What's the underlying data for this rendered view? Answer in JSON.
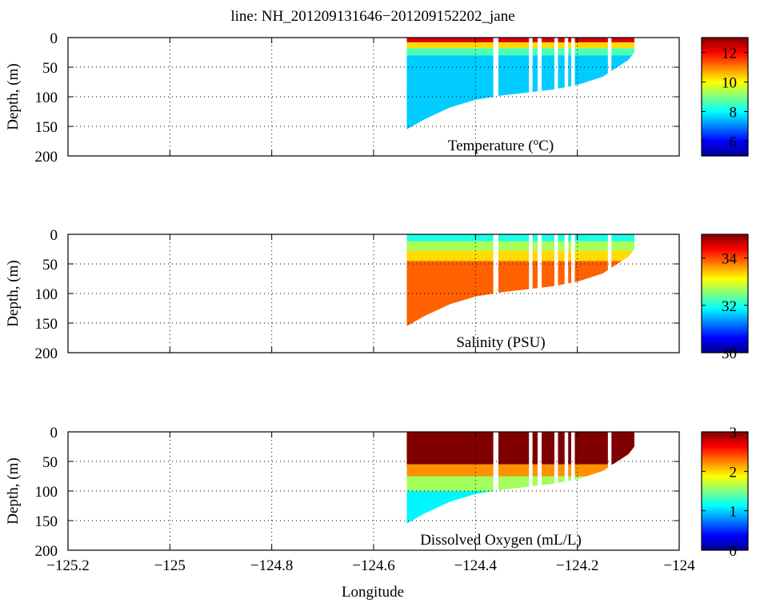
{
  "title": "line: NH_201209131646−201209152202_jane",
  "chart_data": [
    {
      "type": "heatmap",
      "panel": "temperature",
      "label": "Temperature (°C)",
      "label_parts": {
        "pre": "Temperature (",
        "sup": "o",
        "post": "C)"
      },
      "xlabel": "Longitude",
      "ylabel": "Depth, (m)",
      "xlim": [
        -125.2,
        -124.0
      ],
      "ylim": [
        0,
        200
      ],
      "xticks": [
        -125.2,
        -125.0,
        -124.8,
        -124.6,
        -124.4,
        -124.2,
        -124.0
      ],
      "yticks": [
        0,
        50,
        100,
        150,
        200
      ],
      "ytick_labels": [
        "0",
        "50",
        "100",
        "150",
        "200"
      ],
      "colorbar": {
        "min": 5,
        "max": 13,
        "ticks": [
          6,
          8,
          10,
          12
        ],
        "tick_labels": [
          "6",
          "8",
          "10",
          "12"
        ]
      },
      "layers": [
        {
          "from": 0,
          "to": 8,
          "value": 12.3
        },
        {
          "from": 8,
          "to": 18,
          "value": 10.3
        },
        {
          "from": 18,
          "to": 30,
          "value": 8.6
        },
        {
          "from": 30,
          "to": 200,
          "value": 7.6
        }
      ]
    },
    {
      "type": "heatmap",
      "panel": "salinity",
      "label": "Salinity (PSU)",
      "xlabel": "Longitude",
      "ylabel": "Depth, (m)",
      "xlim": [
        -125.2,
        -124.0
      ],
      "ylim": [
        0,
        200
      ],
      "xticks": [
        -125.2,
        -125.0,
        -124.8,
        -124.6,
        -124.4,
        -124.2,
        -124.0
      ],
      "yticks": [
        0,
        50,
        100,
        150,
        200
      ],
      "ytick_labels": [
        "0",
        "50",
        "100",
        "150",
        "200"
      ],
      "colorbar": {
        "min": 30,
        "max": 35,
        "ticks": [
          30,
          32,
          34
        ],
        "tick_labels": [
          "30",
          "32",
          "34"
        ]
      },
      "layers": [
        {
          "from": 0,
          "to": 12,
          "value": 32.0
        },
        {
          "from": 12,
          "to": 28,
          "value": 32.7
        },
        {
          "from": 28,
          "to": 45,
          "value": 33.3
        },
        {
          "from": 45,
          "to": 200,
          "value": 33.9
        }
      ]
    },
    {
      "type": "heatmap",
      "panel": "oxygen",
      "label": "Dissolved Oxygen (mL/L)",
      "xlabel": "Longitude",
      "ylabel": "Depth, (m)",
      "xlim": [
        -125.2,
        -124.0
      ],
      "ylim": [
        0,
        200
      ],
      "xticks": [
        -125.2,
        -125.0,
        -124.8,
        -124.6,
        -124.4,
        -124.2,
        -124.0
      ],
      "xtick_labels": [
        "−125.2",
        "−125",
        "−124.8",
        "−124.6",
        "−124.4",
        "−124.2",
        "−124"
      ],
      "yticks": [
        0,
        50,
        100,
        150,
        200
      ],
      "ytick_labels": [
        "0",
        "50",
        "100",
        "150",
        "200"
      ],
      "colorbar": {
        "min": 0,
        "max": 3,
        "ticks": [
          0,
          1,
          2,
          3
        ],
        "tick_labels": [
          "0",
          "1",
          "2",
          "3"
        ]
      },
      "layers": [
        {
          "from": 0,
          "to": 55,
          "value": 3.0
        },
        {
          "from": 55,
          "to": 75,
          "value": 2.2
        },
        {
          "from": 75,
          "to": 100,
          "value": 1.6
        },
        {
          "from": 100,
          "to": 200,
          "value": 1.1
        }
      ]
    }
  ],
  "section": {
    "lon_start": -124.535,
    "lon_end": -124.088,
    "bottom_profile": [
      [
        -124.535,
        155
      ],
      [
        -124.5,
        138
      ],
      [
        -124.45,
        118
      ],
      [
        -124.4,
        105
      ],
      [
        -124.35,
        98
      ],
      [
        -124.3,
        93
      ],
      [
        -124.25,
        88
      ],
      [
        -124.2,
        80
      ],
      [
        -124.15,
        66
      ],
      [
        -124.1,
        38
      ],
      [
        -124.088,
        25
      ]
    ],
    "data_gaps": [
      [
        -124.365,
        -124.355
      ],
      [
        -124.295,
        -124.288
      ],
      [
        -124.278,
        -124.27
      ],
      [
        -124.245,
        -124.238
      ],
      [
        -124.225,
        -124.218
      ],
      [
        -124.212,
        -124.205
      ],
      [
        -124.14,
        -124.133
      ]
    ]
  },
  "colors": {
    "grid": "#000000",
    "jet": [
      "#00008f",
      "#0000ff",
      "#0080ff",
      "#00ffff",
      "#80ff80",
      "#ffff00",
      "#ff8000",
      "#ff0000",
      "#800000"
    ]
  }
}
